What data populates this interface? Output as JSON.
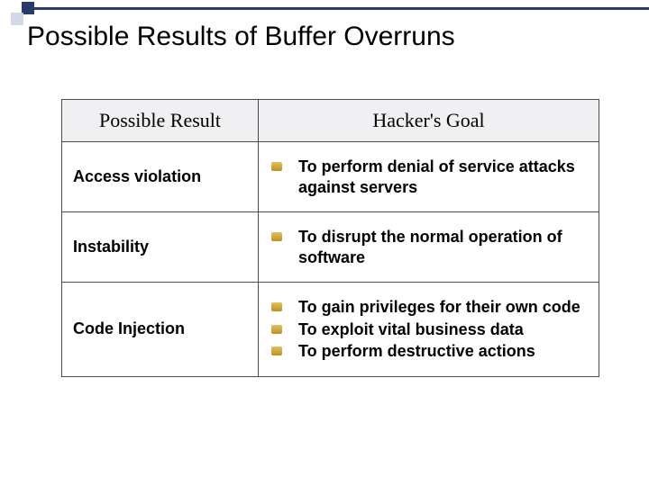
{
  "title": "Possible Results of Buffer Overruns",
  "table": {
    "headers": {
      "col1": "Possible Result",
      "col2": "Hacker's Goal"
    },
    "rows": [
      {
        "result": "Access violation",
        "goals": [
          "To perform denial of service attacks against servers"
        ]
      },
      {
        "result": "Instability",
        "goals": [
          "To disrupt the normal operation of software"
        ]
      },
      {
        "result": "Code Injection",
        "goals": [
          "To gain privileges for their own code",
          "To exploit vital business data",
          "To perform destructive actions"
        ]
      }
    ]
  },
  "colors": {
    "accent": "#2a3a6a",
    "header_bg": "#f0f0f2",
    "border": "#4a4a4a",
    "bullet": "#c89a2e"
  }
}
